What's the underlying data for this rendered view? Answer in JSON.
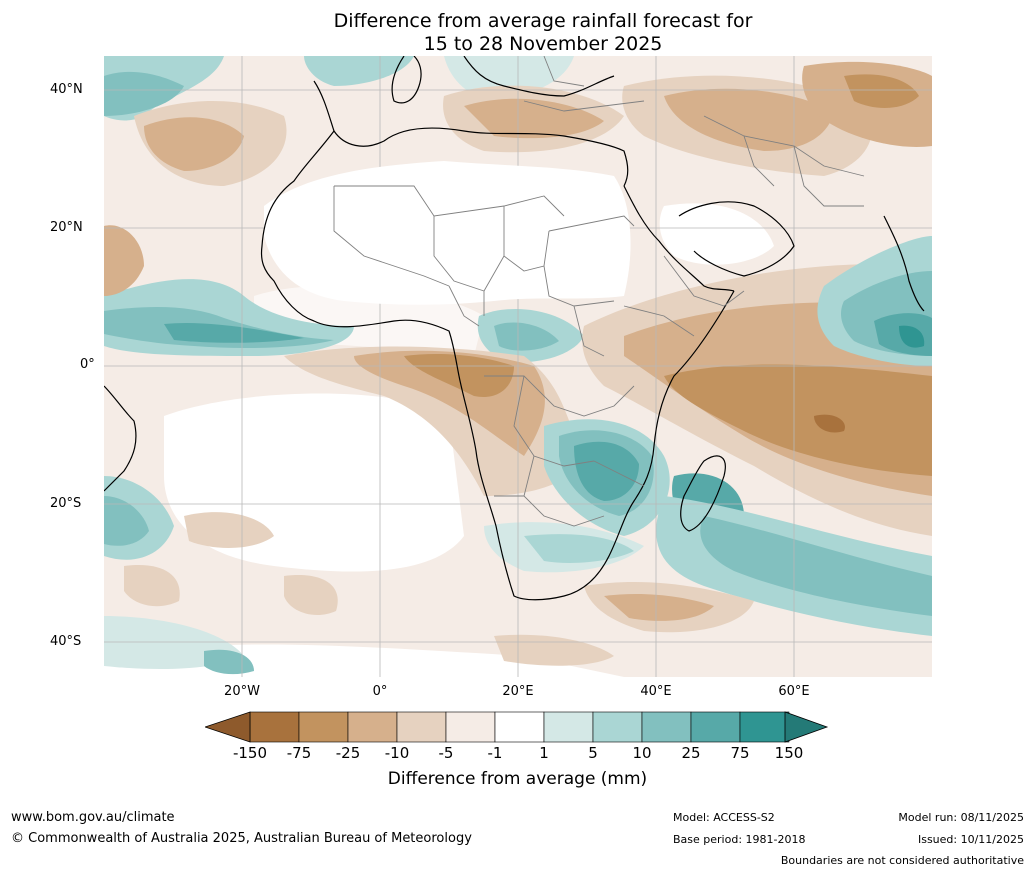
{
  "title_line1": "Difference from average rainfall forecast for",
  "title_line2": "15 to 28 November 2025",
  "lat_labels": [
    "40°N",
    "20°N",
    "0°",
    "20°S",
    "40°S"
  ],
  "lon_labels": [
    "20°W",
    "0°",
    "20°E",
    "40°E",
    "60°E"
  ],
  "colorbar": {
    "title": "Difference from average (mm)",
    "tick_labels": [
      "-150",
      "-75",
      "-25",
      "-10",
      "-5",
      "-1",
      "1",
      "5",
      "10",
      "25",
      "75",
      "150"
    ],
    "colors": [
      "#a8723d",
      "#c2935f",
      "#d6b08c",
      "#e6d2c0",
      "#f5ece6",
      "#ffffff",
      "#d4e8e6",
      "#aad6d4",
      "#82c0bf",
      "#57a9a8",
      "#2f9592"
    ]
  },
  "footer": {
    "website": "www.bom.gov.au/climate",
    "copyright": "© Commonwealth of Australia 2025, Australian Bureau of Meteorology",
    "model": "Model: ACCESS-S2",
    "base_period": "Base period: 1981-2018",
    "model_run": "Model run: 08/11/2025",
    "issued": "Issued: 10/11/2025",
    "disclaimer": "Boundaries are not considered authoritative"
  }
}
